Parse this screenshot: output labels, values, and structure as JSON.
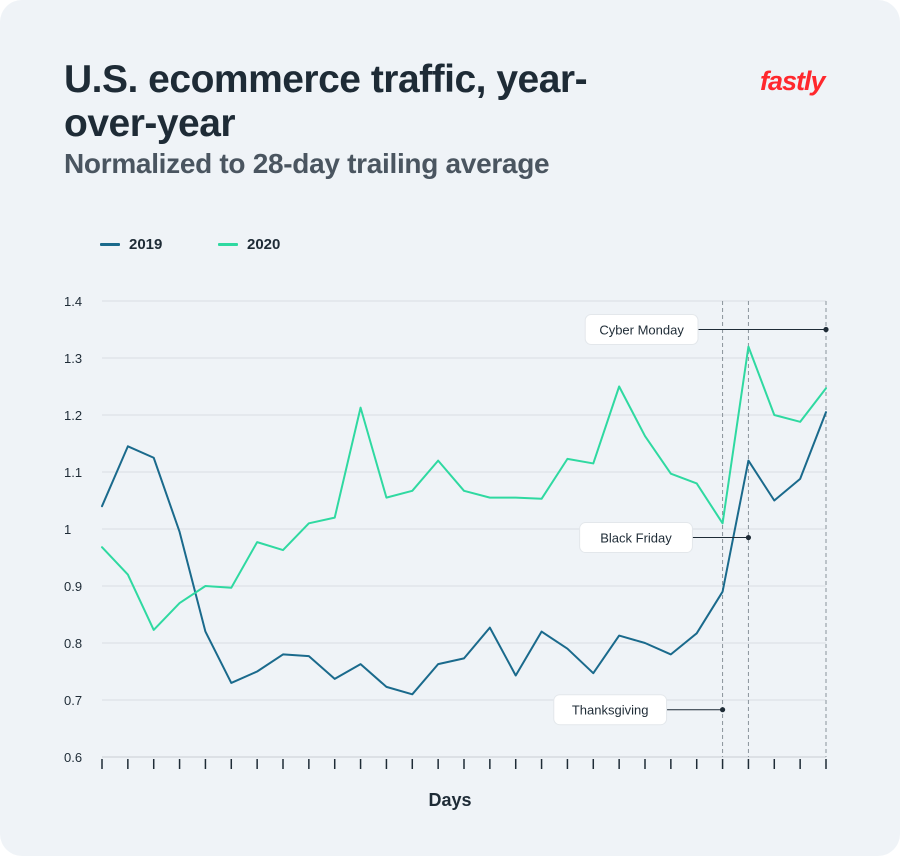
{
  "header": {
    "title": "U.S. ecommerce traffic, year-over-year",
    "subtitle": "Normalized to 28-day trailing average",
    "logo_text": "fastly"
  },
  "colors": {
    "series_2019": "#1a6a8c",
    "series_2020": "#2fd9a1",
    "logo": "#ff282d",
    "grid": "#d9dee3",
    "text": "#1e2b36"
  },
  "chart_data": {
    "type": "line",
    "xlabel": "Days",
    "ylabel": "",
    "ylim": [
      0.6,
      1.4
    ],
    "yticks": [
      0.6,
      0.7,
      0.8,
      0.9,
      1,
      1.1,
      1.2,
      1.3,
      1.4
    ],
    "ytick_labels": [
      "0.6",
      "0.7",
      "0.8",
      "0.9",
      "1",
      "1.1",
      "1.2",
      "1.3",
      "1.4"
    ],
    "x": [
      1,
      2,
      3,
      4,
      5,
      6,
      7,
      8,
      9,
      10,
      11,
      12,
      13,
      14,
      15,
      16,
      17,
      18,
      19,
      20,
      21,
      22,
      23,
      24,
      25,
      26,
      27,
      28,
      29
    ],
    "grid": true,
    "legend_position": "top-left",
    "series": [
      {
        "name": "2019",
        "values": [
          1.04,
          1.145,
          1.125,
          0.995,
          0.82,
          0.73,
          0.75,
          0.78,
          0.777,
          0.737,
          0.763,
          0.723,
          0.71,
          0.763,
          0.773,
          0.827,
          0.743,
          0.82,
          0.79,
          0.747,
          0.813,
          0.8,
          0.78,
          0.817,
          0.89,
          1.12,
          1.05,
          1.088,
          1.205
        ]
      },
      {
        "name": "2020",
        "values": [
          0.968,
          0.92,
          0.823,
          0.87,
          0.9,
          0.897,
          0.977,
          0.963,
          1.01,
          1.02,
          1.213,
          1.055,
          1.067,
          1.12,
          1.067,
          1.055,
          1.055,
          1.053,
          1.123,
          1.115,
          1.25,
          1.163,
          1.097,
          1.08,
          1.01,
          1.32,
          1.2,
          1.188,
          1.247
        ]
      }
    ],
    "annotations": [
      {
        "label": "Cyber Monday",
        "x": 29,
        "y": 1.35
      },
      {
        "label": "Black Friday",
        "x": 26,
        "y": 0.985
      },
      {
        "label": "Thanksgiving",
        "x": 25,
        "y": 0.683
      }
    ],
    "marker_lines_x": [
      25,
      26,
      29
    ]
  }
}
